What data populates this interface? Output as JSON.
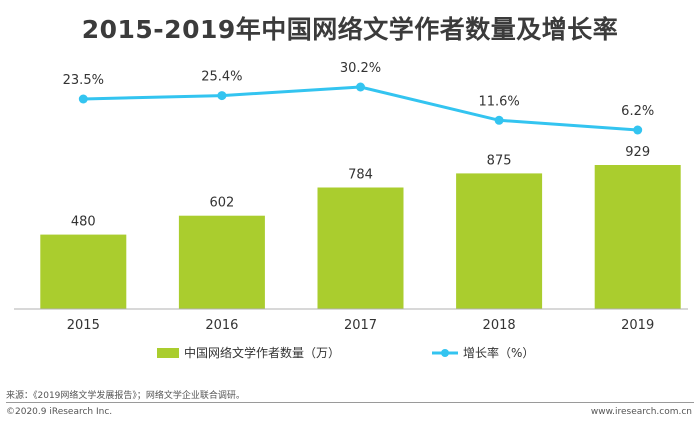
{
  "header": {
    "title": "2015-2019年中国网络文学作者数量及增长率"
  },
  "footer": {
    "source": "来源：《2019网络文学发展报告》；网络文学企业联合调研。",
    "copyright": "©2020.9 iResearch Inc.",
    "url": "www.iresearch.com.cn"
  },
  "colors": {
    "bar": "#aacd2e",
    "line": "#33c4f0",
    "axis": "#b0b0b0",
    "text": "#333333"
  },
  "chart_data": {
    "type": "bar",
    "categories": [
      "2015",
      "2016",
      "2017",
      "2018",
      "2019"
    ],
    "series": [
      {
        "name": "中国网络文学作者数量（万）",
        "type": "bar",
        "values": [
          480,
          602,
          784,
          875,
          929
        ],
        "labels": [
          "480",
          "602",
          "784",
          "875",
          "929"
        ]
      },
      {
        "name": "增长率（%）",
        "type": "line",
        "values": [
          23.5,
          25.4,
          30.2,
          11.6,
          6.2
        ],
        "labels": [
          "23.5%",
          "25.4%",
          "30.2%",
          "11.6%",
          "6.2%"
        ]
      }
    ],
    "title": "2015-2019年中国网络文学作者数量及增长率",
    "legend": "bottom",
    "grid": false
  }
}
